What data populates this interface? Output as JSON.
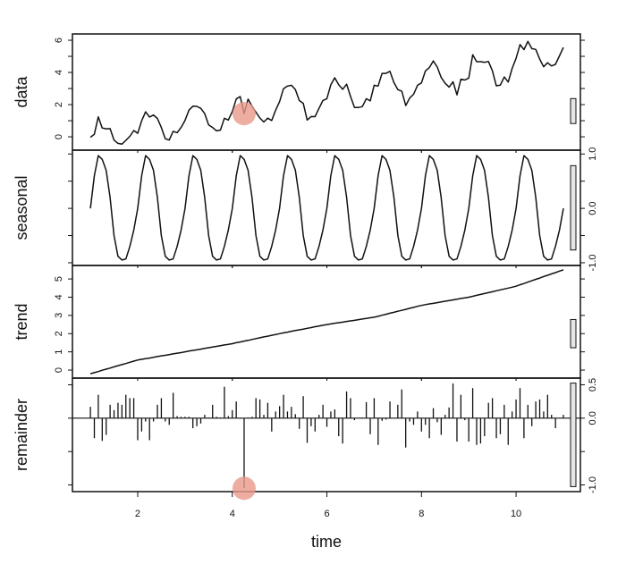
{
  "chart_data": {
    "type": "line",
    "xlabel": "time",
    "x_start": 1,
    "x_frequency": 12,
    "xlim": [
      0.62,
      11.36
    ],
    "x_ticks": [
      2,
      4,
      6,
      8,
      10
    ],
    "grid": false,
    "highlight_color": "#e8988a",
    "highlights": [
      {
        "panel": "data",
        "x": 4.25,
        "y": 1.44
      },
      {
        "panel": "remainder",
        "x": 4.25,
        "y": -1.05
      }
    ],
    "panels": [
      {
        "name": "data",
        "ylabel": "data",
        "style": "line",
        "ylim": [
          -0.83,
          6.39
        ],
        "ticks": [
          0,
          1,
          2,
          3,
          4,
          5,
          6
        ],
        "tick_labels": [
          "0",
          "2",
          "4",
          "6"
        ],
        "tick_label_values": [
          0,
          2,
          4,
          6
        ],
        "label_side": "left",
        "values": [
          -0.03,
          0.16,
          1.24,
          0.55,
          0.5,
          0.51,
          -0.2,
          -0.41,
          -0.45,
          -0.22,
          0.03,
          0.39,
          0.22,
          0.99,
          1.55,
          1.23,
          1.35,
          1.14,
          0.58,
          -0.12,
          -0.2,
          0.34,
          0.26,
          0.58,
          1.02,
          1.66,
          1.9,
          1.89,
          1.77,
          1.44,
          0.74,
          0.58,
          0.37,
          0.42,
          1.15,
          1.04,
          1.57,
          2.35,
          2.5,
          1.44,
          2.34,
          1.9,
          1.53,
          1.17,
          0.92,
          1.16,
          1.01,
          1.65,
          2.18,
          2.99,
          3.15,
          3.2,
          2.93,
          2.25,
          2.08,
          1.04,
          1.26,
          1.25,
          1.77,
          2.26,
          2.37,
          3.23,
          3.67,
          3.23,
          2.95,
          3.27,
          2.5,
          1.82,
          1.82,
          1.88,
          2.37,
          2.23,
          3.2,
          3.15,
          3.94,
          3.94,
          4.07,
          3.37,
          2.93,
          2.83,
          1.94,
          2.41,
          2.64,
          3.2,
          3.35,
          4.09,
          4.3,
          4.71,
          4.34,
          3.69,
          3.33,
          3.09,
          3.42,
          2.61,
          3.58,
          3.53,
          3.65,
          5.1,
          4.67,
          4.67,
          4.63,
          4.68,
          4.1,
          3.17,
          3.21,
          3.72,
          3.4,
          4.25,
          4.88,
          5.73,
          5.42,
          5.93,
          5.48,
          5.43,
          4.83,
          4.35,
          4.6,
          4.4,
          4.5,
          5.03,
          5.55
        ]
      },
      {
        "name": "seasonal",
        "ylabel": "seasonal",
        "style": "line",
        "ylim": [
          -1.05,
          1.07
        ],
        "ticks": [
          -1,
          -0.5,
          0,
          0.5,
          1
        ],
        "tick_labels": [
          "-1.0",
          "0.0",
          "1.0"
        ],
        "tick_label_values": [
          -1,
          0,
          1
        ],
        "label_side": "right",
        "values": [
          0,
          0.6,
          0.97,
          0.9,
          0.7,
          0.2,
          -0.5,
          -0.88,
          -0.95,
          -0.93,
          -0.7,
          -0.4,
          0,
          0.6,
          0.97,
          0.9,
          0.7,
          0.2,
          -0.5,
          -0.88,
          -0.95,
          -0.93,
          -0.7,
          -0.4,
          0,
          0.6,
          0.97,
          0.9,
          0.7,
          0.2,
          -0.5,
          -0.88,
          -0.95,
          -0.93,
          -0.7,
          -0.4,
          0,
          0.6,
          0.97,
          0.9,
          0.7,
          0.2,
          -0.5,
          -0.88,
          -0.95,
          -0.93,
          -0.7,
          -0.4,
          0,
          0.6,
          0.97,
          0.9,
          0.7,
          0.2,
          -0.5,
          -0.88,
          -0.95,
          -0.93,
          -0.7,
          -0.4,
          0,
          0.6,
          0.97,
          0.9,
          0.7,
          0.2,
          -0.5,
          -0.88,
          -0.95,
          -0.93,
          -0.7,
          -0.4,
          0,
          0.6,
          0.97,
          0.9,
          0.7,
          0.2,
          -0.5,
          -0.88,
          -0.95,
          -0.93,
          -0.7,
          -0.4,
          0,
          0.6,
          0.97,
          0.9,
          0.7,
          0.2,
          -0.5,
          -0.88,
          -0.95,
          -0.93,
          -0.7,
          -0.4,
          0,
          0.6,
          0.97,
          0.9,
          0.7,
          0.2,
          -0.5,
          -0.88,
          -0.95,
          -0.93,
          -0.7,
          -0.4,
          0,
          0.6,
          0.97,
          0.9,
          0.7,
          0.2,
          -0.5,
          -0.88,
          -0.95,
          -0.93,
          -0.7,
          -0.4,
          0
        ]
      },
      {
        "name": "trend",
        "ylabel": "trend",
        "style": "line",
        "ylim": [
          -0.44,
          5.74
        ],
        "ticks": [
          0,
          1,
          2,
          3,
          4,
          5
        ],
        "tick_labels": [
          "0",
          "1",
          "2",
          "3",
          "4",
          "5"
        ],
        "tick_label_values": [
          0,
          1,
          2,
          3,
          4,
          5
        ],
        "label_side": "left",
        "values": [
          -0.2,
          -0.14,
          -0.08,
          -0.01,
          0.05,
          0.11,
          0.18,
          0.24,
          0.3,
          0.36,
          0.43,
          0.49,
          0.55,
          0.59,
          0.63,
          0.66,
          0.7,
          0.74,
          0.78,
          0.81,
          0.85,
          0.89,
          0.93,
          0.96,
          1.0,
          1.04,
          1.08,
          1.11,
          1.15,
          1.19,
          1.23,
          1.26,
          1.3,
          1.34,
          1.38,
          1.41,
          1.45,
          1.5,
          1.54,
          1.59,
          1.63,
          1.68,
          1.73,
          1.77,
          1.82,
          1.86,
          1.91,
          1.95,
          2.0,
          2.04,
          2.08,
          2.13,
          2.17,
          2.21,
          2.25,
          2.29,
          2.33,
          2.38,
          2.42,
          2.46,
          2.5,
          2.53,
          2.57,
          2.6,
          2.63,
          2.67,
          2.7,
          2.73,
          2.77,
          2.8,
          2.83,
          2.87,
          2.9,
          2.95,
          3.01,
          3.06,
          3.12,
          3.17,
          3.23,
          3.28,
          3.33,
          3.39,
          3.44,
          3.5,
          3.55,
          3.59,
          3.63,
          3.66,
          3.7,
          3.74,
          3.78,
          3.81,
          3.85,
          3.89,
          3.93,
          3.96,
          4.0,
          4.05,
          4.1,
          4.15,
          4.2,
          4.25,
          4.3,
          4.35,
          4.4,
          4.45,
          4.5,
          4.55,
          4.6,
          4.68,
          4.75,
          4.83,
          4.9,
          4.98,
          5.05,
          5.13,
          5.2,
          5.28,
          5.35,
          5.43,
          5.5
        ]
      },
      {
        "name": "remainder",
        "ylabel": "remainder",
        "style": "spikes",
        "ylim": [
          -1.1,
          0.6
        ],
        "ticks": [
          -1,
          -0.5,
          0,
          0.5
        ],
        "tick_labels": [
          "-1.0",
          "0.0",
          "0.5"
        ],
        "tick_label_values": [
          -1,
          0,
          0.5
        ],
        "label_side": "right",
        "values": [
          0.17,
          -0.3,
          0.35,
          -0.34,
          -0.25,
          0.2,
          0.12,
          0.23,
          0.2,
          0.35,
          0.3,
          0.3,
          -0.33,
          -0.2,
          -0.05,
          -0.33,
          -0.05,
          0.2,
          0.3,
          -0.05,
          -0.1,
          0.38,
          0.03,
          0.02,
          0.02,
          0.02,
          -0.15,
          -0.12,
          -0.08,
          0.05,
          0.01,
          0.2,
          0.02,
          0.01,
          0.47,
          0.03,
          0.12,
          0.25,
          -0.01,
          -1.05,
          0.01,
          0.02,
          0.3,
          0.28,
          0.05,
          0.23,
          -0.2,
          0.1,
          0.18,
          0.35,
          0.1,
          0.17,
          0.06,
          -0.16,
          0.33,
          -0.37,
          -0.12,
          -0.2,
          0.05,
          0.2,
          -0.13,
          0.1,
          0.13,
          -0.27,
          -0.38,
          0.4,
          0.3,
          -0.03,
          0,
          0.01,
          0.24,
          -0.24,
          0.3,
          -0.4,
          -0.04,
          -0.02,
          0.25,
          0,
          0.2,
          0.43,
          -0.44,
          -0.05,
          -0.1,
          0.1,
          -0.2,
          -0.1,
          -0.3,
          0.15,
          -0.06,
          -0.25,
          0.05,
          0.16,
          0.52,
          -0.35,
          0.35,
          -0.03,
          -0.35,
          0.45,
          -0.4,
          -0.38,
          -0.27,
          0.23,
          0.3,
          -0.3,
          -0.24,
          0.2,
          -0.4,
          0.1,
          0.28,
          0.45,
          -0.3,
          0.2,
          -0.12,
          0.25,
          0.28,
          0.1,
          0.35,
          0.05,
          -0.15,
          0,
          0.05
        ]
      }
    ],
    "scale_bar_size": 1.55
  }
}
